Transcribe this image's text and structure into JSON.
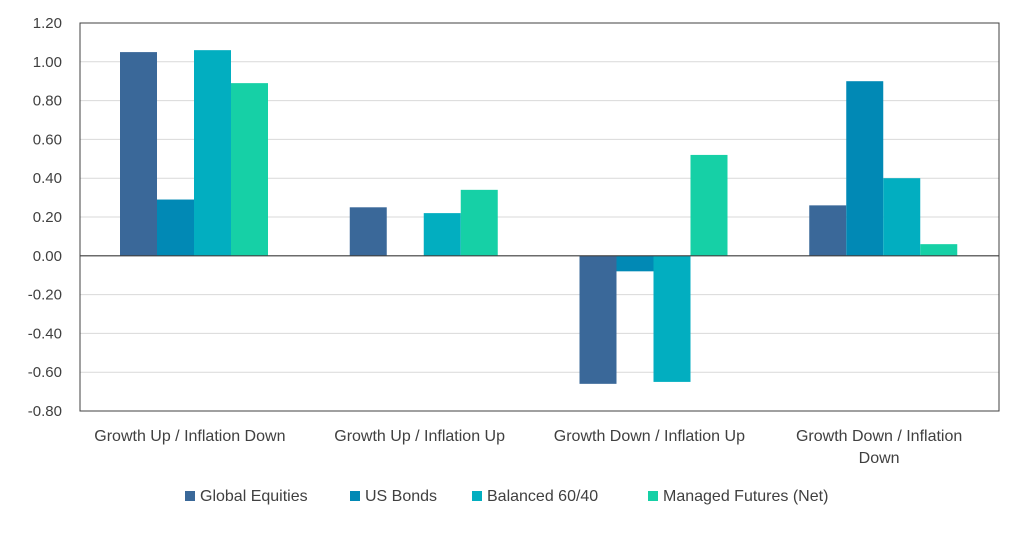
{
  "chart_data": {
    "type": "bar",
    "categories": [
      [
        "Growth Up / Inflation Down"
      ],
      [
        "Growth Up / Inflation Up"
      ],
      [
        "Growth Down / Inflation Up"
      ],
      [
        "Growth Down / Inflation",
        "Down"
      ]
    ],
    "series": [
      {
        "name": "Global Equities",
        "color": "#3a6899",
        "values": [
          1.05,
          0.25,
          -0.66,
          0.26
        ]
      },
      {
        "name": "US Bonds",
        "color": "#0189b5",
        "values": [
          0.29,
          null,
          -0.08,
          0.9
        ]
      },
      {
        "name": "Balanced 60/40",
        "color": "#02aec0",
        "values": [
          1.06,
          0.22,
          -0.65,
          0.4
        ]
      },
      {
        "name": "Managed Futures (Net)",
        "color": "#16d0a6",
        "values": [
          0.89,
          0.34,
          0.52,
          0.06
        ]
      }
    ],
    "ylim": [
      -0.8,
      1.2
    ],
    "yticks": [
      "1.20",
      "1.00",
      "0.80",
      "0.60",
      "0.40",
      "0.20",
      "0.00",
      "-0.20",
      "-0.40",
      "-0.60",
      "-0.80"
    ],
    "ytick_values": [
      1.2,
      1.0,
      0.8,
      0.6,
      0.4,
      0.2,
      0.0,
      -0.2,
      -0.4,
      -0.6,
      -0.8
    ],
    "grid": true,
    "legend_position": "bottom",
    "title": "",
    "xlabel": "",
    "ylabel": ""
  }
}
